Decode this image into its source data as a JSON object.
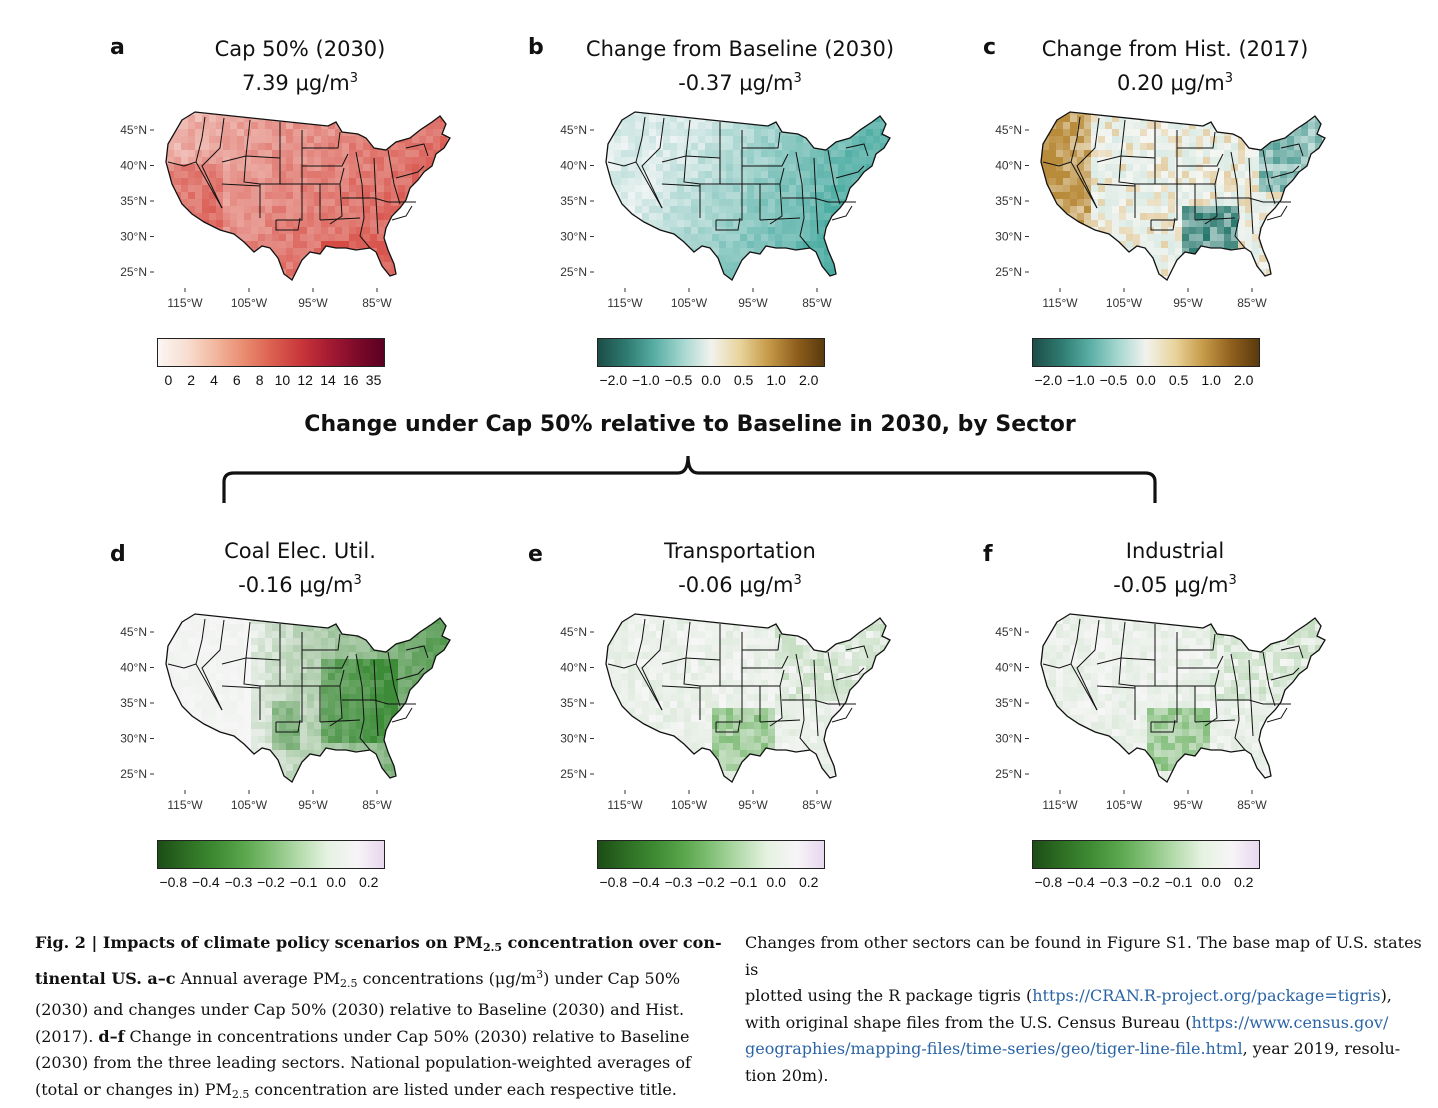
{
  "section_title": "Change under Cap 50% relative to Baseline in 2030, by Sector",
  "lat_ticks": [
    "45°N",
    "40°N",
    "35°N",
    "30°N",
    "25°N"
  ],
  "lon_ticks": [
    "115°W",
    "105°W",
    "95°W",
    "85°W"
  ],
  "panels": [
    {
      "letter": "a",
      "title": "Cap 50% (2030)",
      "value": "7.39 μg/m",
      "sup": "3",
      "scheme": "reds"
    },
    {
      "letter": "b",
      "title": "Change from Baseline (2030)",
      "value": "-0.37 μg/m",
      "sup": "3",
      "scheme": "teal"
    },
    {
      "letter": "c",
      "title": "Change from Hist. (2017)",
      "value": "0.20 μg/m",
      "sup": "3",
      "scheme": "tealbrown"
    },
    {
      "letter": "d",
      "title": "Coal Elec. Util.",
      "value": "-0.16 μg/m",
      "sup": "3",
      "scheme": "greens"
    },
    {
      "letter": "e",
      "title": "Transportation",
      "value": "-0.06 μg/m",
      "sup": "3",
      "scheme": "greens_light"
    },
    {
      "letter": "f",
      "title": "Industrial",
      "value": "-0.05 μg/m",
      "sup": "3",
      "scheme": "greens_light"
    }
  ],
  "colorbars": {
    "reds": {
      "ticks": [
        "0",
        "2",
        "4",
        "6",
        "8",
        "10",
        "12",
        "14",
        "16",
        "35"
      ],
      "colors": [
        "#fbf6f3",
        "#f8ddd0",
        "#f2b8a0",
        "#e98c70",
        "#dc6151",
        "#c9373b",
        "#a81c33",
        "#7e0a2a",
        "#5a0021"
      ]
    },
    "teal": {
      "ticks": [
        "−2.0",
        "−1.0",
        "−0.5",
        "0.0",
        "0.5",
        "1.0",
        "2.0"
      ],
      "colors": [
        "#1d4d47",
        "#2f7c72",
        "#58aea4",
        "#a7d8d0",
        "#f2f2ee",
        "#e8d39a",
        "#c79c4a",
        "#8e5f1d",
        "#5a3a0d"
      ]
    },
    "greens": {
      "ticks": [
        "−0.8",
        "−0.4",
        "−0.3",
        "−0.2",
        "−0.1",
        "0.0",
        "0.2"
      ],
      "colors": [
        "#1c4d16",
        "#2e6f24",
        "#3e8a33",
        "#5aa64c",
        "#82c077",
        "#b6dcae",
        "#e5f2e1",
        "#f7f4f7",
        "#e8d7ee"
      ]
    }
  },
  "caption": {
    "fig_label": "Fig. 2 | Impacts of climate policy scenarios on PM",
    "fig_label_sub": "2.5",
    "fig_label_end": " concentration over con-",
    "line2_bold": "tinental US. a–c",
    "line2_rest_a": " Annual average PM",
    "line2_sub": "2.5",
    "line2_rest_b": " concentrations (μg/m",
    "line2_sup": "3",
    "line2_rest_c": ") under Cap 50%",
    "line3": "(2030) and changes under Cap 50% (2030) relative to Baseline (2030) and Hist.",
    "line4_a": "(2017). ",
    "line4_bold": "d–f",
    "line4_b": " Change in concentrations under Cap 50% (2030) relative to Baseline",
    "line5": "(2030) from the three leading sectors. National population-weighted averages of",
    "line6_a": "(total or changes in) PM",
    "line6_sub": "2.5",
    "line6_b": " concentration are listed under each respective title.",
    "r_line1": "Changes from other sectors can be found in Figure S1. The base map of U.S. states is",
    "r_line2_a": "plotted using the R package tigris (",
    "r_link1": "https://CRAN.R-project.org/package=tigris",
    "r_line2_b": "),",
    "r_line3_a": "with original shape files from the U.S. Census Bureau (",
    "r_link2a": "https://www.census.gov/",
    "r_link2b": "geographies/mapping-files/time-series/geo/tiger-line-file.html",
    "r_line4_b": ", year 2019, resolu-",
    "r_line5": "tion 20m)."
  }
}
